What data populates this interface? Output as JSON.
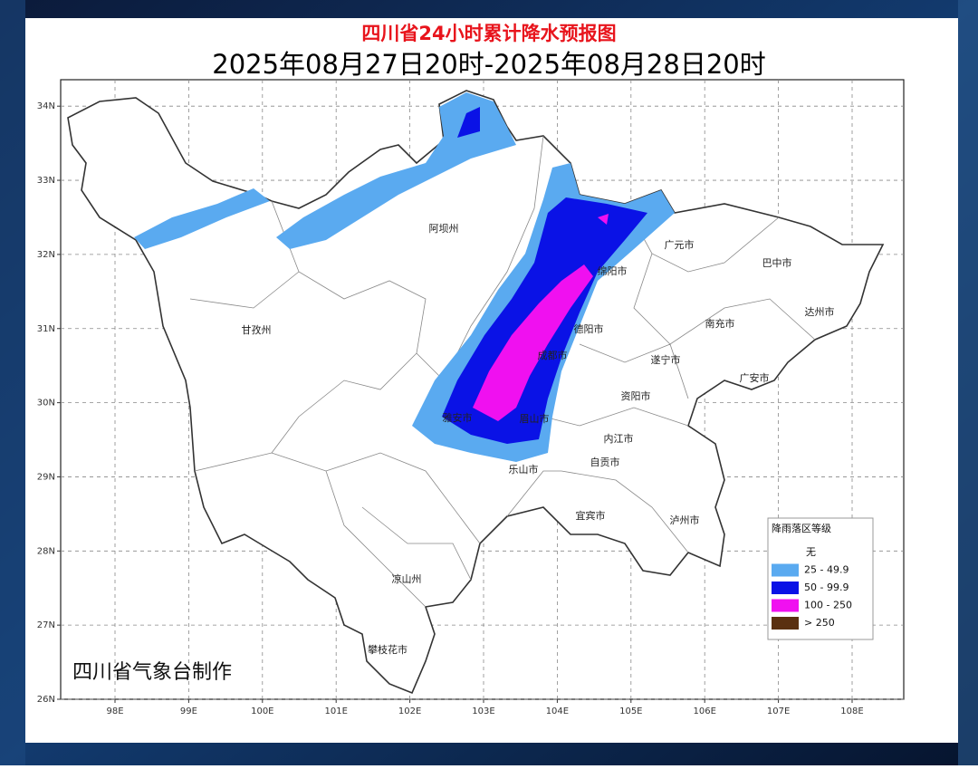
{
  "header": {
    "title": "四川省24小时累计降水预报图",
    "subtitle": "2025年08月27日20时-2025年08月28日20时"
  },
  "map": {
    "lon_ticks": [
      {
        "value": 98,
        "label": "98E"
      },
      {
        "value": 99,
        "label": "99E"
      },
      {
        "value": 100,
        "label": "100E"
      },
      {
        "value": 101,
        "label": "101E"
      },
      {
        "value": 102,
        "label": "102E"
      },
      {
        "value": 103,
        "label": "103E"
      },
      {
        "value": 104,
        "label": "104E"
      },
      {
        "value": 105,
        "label": "105E"
      },
      {
        "value": 106,
        "label": "106E"
      },
      {
        "value": 107,
        "label": "107E"
      },
      {
        "value": 108,
        "label": "108E"
      }
    ],
    "lat_ticks": [
      {
        "value": 34,
        "label": "34N"
      },
      {
        "value": 33,
        "label": "33N"
      },
      {
        "value": 32,
        "label": "32N"
      },
      {
        "value": 31,
        "label": "31N"
      },
      {
        "value": 30,
        "label": "30N"
      },
      {
        "value": 29,
        "label": "29N"
      },
      {
        "value": 28,
        "label": "28N"
      },
      {
        "value": 27,
        "label": "27N"
      },
      {
        "value": 26,
        "label": "26N"
      }
    ],
    "cities": [
      "阿坝州",
      "甘孜州",
      "广元市",
      "巴中市",
      "绵阳市",
      "达州市",
      "德阳市",
      "南充市",
      "成都市",
      "遂宁市",
      "广安市",
      "资阳市",
      "雅安市",
      "眉山市",
      "内江市",
      "自贡市",
      "乐山市",
      "宜宾市",
      "泸州市",
      "凉山州",
      "攀枝花市"
    ],
    "credit": "四川省气象台制作"
  },
  "legend": {
    "title": "降雨落区等级",
    "items": [
      {
        "label": "无",
        "color": null
      },
      {
        "label": "25 - 49.9",
        "color": "#5aaaf0"
      },
      {
        "label": "50 - 99.9",
        "color": "#0a12e6"
      },
      {
        "label": "100 - 250",
        "color": "#f010f0"
      },
      {
        "label": "> 250",
        "color": "#5a3010"
      }
    ]
  }
}
